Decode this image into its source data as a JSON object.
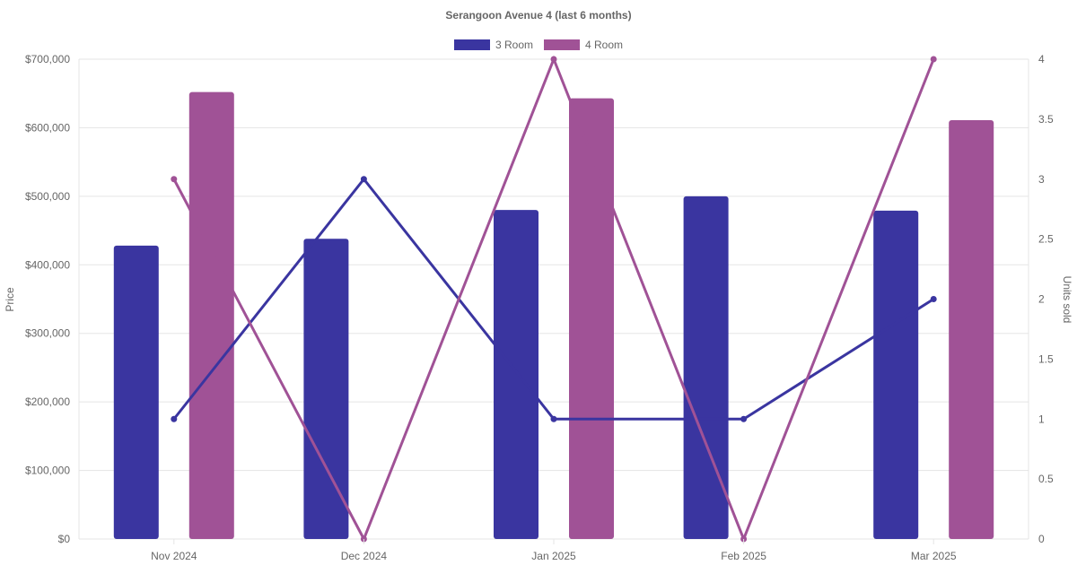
{
  "chart_data": {
    "type": "bar",
    "title": "Serangoon Avenue 4 (last 6 months)",
    "categories": [
      "Nov 2024",
      "Dec 2024",
      "Jan 2025",
      "Feb 2025",
      "Mar 2025"
    ],
    "y_left": {
      "label": "Price",
      "ticks": [
        "$0",
        "$100,000",
        "$200,000",
        "$300,000",
        "$400,000",
        "$500,000",
        "$600,000",
        "$700,000"
      ],
      "ylim": [
        0,
        700000
      ]
    },
    "y_right": {
      "label": "Units sold",
      "ticks": [
        "0",
        "0.5",
        "1",
        "1.5",
        "2",
        "2.5",
        "3",
        "3.5",
        "4"
      ],
      "ylim": [
        0,
        4
      ]
    },
    "legend": {
      "position": "top",
      "entries": [
        "3 Room",
        "4 Room"
      ]
    },
    "bars": [
      {
        "name": "3 Room",
        "color": "#3a35a0",
        "values": [
          428000,
          438000,
          480000,
          500000,
          479000
        ]
      },
      {
        "name": "4 Room",
        "color": "#a05296",
        "values": [
          652000,
          null,
          643000,
          null,
          611000
        ]
      }
    ],
    "lines": [
      {
        "name": "3 Room",
        "color": "#3a35a0",
        "values": [
          1,
          3,
          1,
          1,
          2
        ]
      },
      {
        "name": "4 Room",
        "color": "#a05296",
        "values": [
          3,
          0,
          4,
          0,
          4
        ]
      }
    ],
    "grid": true
  }
}
